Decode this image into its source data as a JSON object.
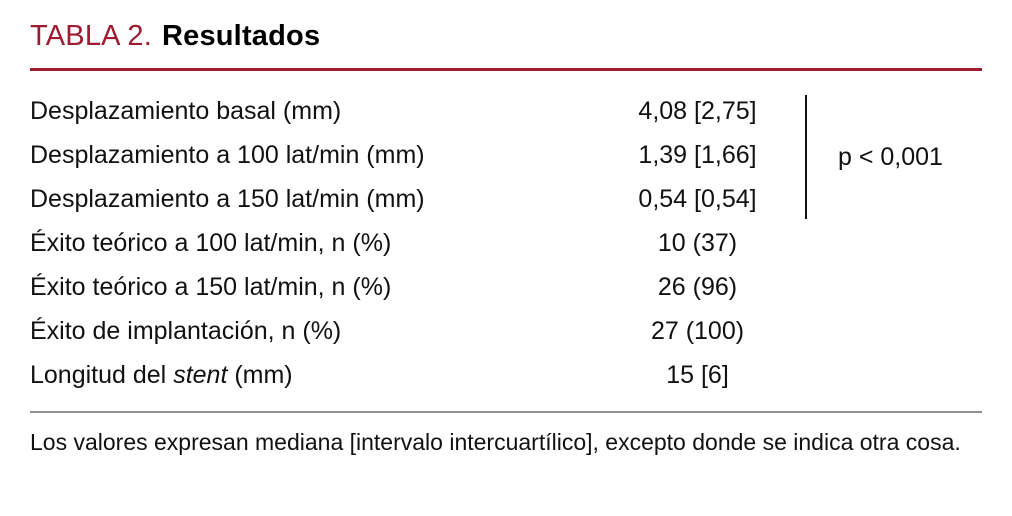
{
  "header": {
    "table_label": "TABLA 2.",
    "table_title": "Resultados"
  },
  "table": {
    "rows": [
      {
        "label": "Desplazamiento basal (mm)",
        "value": "4,08 [2,75]"
      },
      {
        "label": "Desplazamiento a 100 lat/min (mm)",
        "value": "1,39 [1,66]"
      },
      {
        "label": "Desplazamiento a 150 lat/min (mm)",
        "value": "0,54 [0,54]"
      },
      {
        "label": "Éxito teórico a 100 lat/min, n (%)",
        "value": "10 (37)"
      },
      {
        "label": "Éxito teórico a 150 lat/min, n (%)",
        "value": "26 (96)"
      },
      {
        "label": "Éxito de implantación, n (%)",
        "value": "27 (100)"
      },
      {
        "label_prefix": "Longitud del ",
        "label_italic": "stent",
        "label_suffix": " (mm)",
        "value": "15 [6]"
      }
    ],
    "p_value": "p < 0,001"
  },
  "footnote": "Los valores expresan mediana [intervalo intercuartílico], excepto donde se indica otra cosa.",
  "colors": {
    "accent_red": "#9e1b32",
    "rule_gray": "#8f8f8f",
    "text": "#111111"
  }
}
